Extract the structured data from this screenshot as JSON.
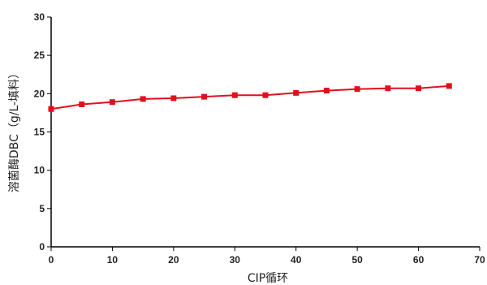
{
  "chart_data": {
    "type": "line",
    "xlabel": "CIP循环",
    "ylabel": "溶菌酶DBC（g/L-填料）",
    "xlim": [
      0,
      70
    ],
    "ylim": [
      0,
      30
    ],
    "x_ticks": [
      0,
      10,
      20,
      30,
      40,
      50,
      60,
      70
    ],
    "y_ticks": [
      0,
      5,
      10,
      15,
      20,
      25,
      30
    ],
    "grid": false,
    "series": [
      {
        "color": "#e0101c",
        "marker": "square",
        "points": [
          {
            "x": 0,
            "y": 18.0
          },
          {
            "x": 5,
            "y": 18.6
          },
          {
            "x": 10,
            "y": 18.9
          },
          {
            "x": 15,
            "y": 19.3
          },
          {
            "x": 20,
            "y": 19.4
          },
          {
            "x": 25,
            "y": 19.6
          },
          {
            "x": 30,
            "y": 19.8
          },
          {
            "x": 35,
            "y": 19.8
          },
          {
            "x": 40,
            "y": 20.1
          },
          {
            "x": 45,
            "y": 20.4
          },
          {
            "x": 50,
            "y": 20.6
          },
          {
            "x": 55,
            "y": 20.7
          },
          {
            "x": 60,
            "y": 20.7
          },
          {
            "x": 65,
            "y": 21.0
          }
        ]
      }
    ]
  }
}
